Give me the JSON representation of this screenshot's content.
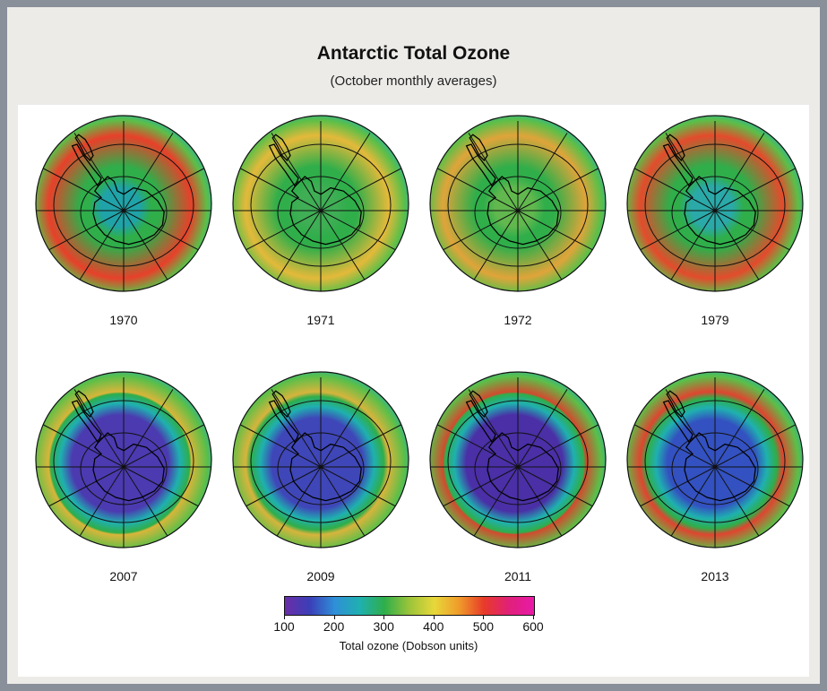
{
  "title": "Antarctic Total Ozone",
  "subtitle": "(October monthly averages)",
  "maps": [
    {
      "year": "1970",
      "hole": 0.0,
      "inner_color": "#1fa3a8",
      "rim_color": "#e8402a"
    },
    {
      "year": "1971",
      "hole": 0.0,
      "inner_color": "#3fae55",
      "rim_color": "#e4b93a"
    },
    {
      "year": "1972",
      "hole": 0.0,
      "inner_color": "#62b84e",
      "rim_color": "#e0a43a"
    },
    {
      "year": "1979",
      "hole": 0.05,
      "inner_color": "#2aa9a8",
      "rim_color": "#e44b2c"
    },
    {
      "year": "2007",
      "hole": 1.0,
      "inner_color": "#4b3ab0",
      "rim_color": "#d9b53a"
    },
    {
      "year": "2009",
      "hole": 0.9,
      "inner_color": "#3f46b8",
      "rim_color": "#d7b43c"
    },
    {
      "year": "2011",
      "hole": 1.0,
      "inner_color": "#4a2fa6",
      "rim_color": "#d24a2f"
    },
    {
      "year": "2013",
      "hole": 0.85,
      "inner_color": "#3351c0",
      "rim_color": "#df4530"
    }
  ],
  "colorbar": {
    "label": "Total ozone (Dobson units)",
    "ticks": [
      "100",
      "200",
      "300",
      "400",
      "500",
      "600"
    ],
    "range": [
      100,
      600
    ],
    "stops": [
      "#6a2ea8",
      "#3b3fb8",
      "#2f8fd8",
      "#1fb0b0",
      "#2fae4a",
      "#9cc43a",
      "#e8d83a",
      "#f09a2a",
      "#e83a2a",
      "#e0207a",
      "#e81aa8"
    ]
  }
}
